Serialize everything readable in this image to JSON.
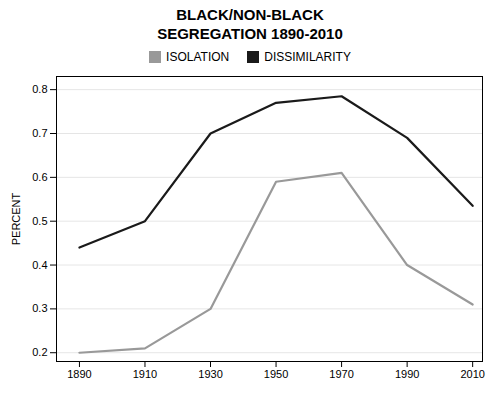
{
  "chart_data": {
    "type": "line",
    "title": "BLACK/NON-BLACK\nSEGREGATION 1890-2010",
    "y_label": "PERCENT",
    "x": [
      1890,
      1910,
      1930,
      1950,
      1970,
      1990,
      2010
    ],
    "series": [
      {
        "name": "ISOLATION",
        "color": "#999999",
        "values": [
          0.2,
          0.21,
          0.3,
          0.59,
          0.61,
          0.4,
          0.31
        ]
      },
      {
        "name": "DISSIMILARITY",
        "color": "#1a1a1a",
        "values": [
          0.44,
          0.5,
          0.7,
          0.77,
          0.785,
          0.69,
          0.535
        ]
      }
    ],
    "xlim": [
      1883,
      2013
    ],
    "xticks": [
      1890,
      1910,
      1930,
      1950,
      1970,
      1990,
      2010
    ],
    "ylim": [
      0.18,
      0.83
    ],
    "yticks": [
      0.2,
      0.3,
      0.4,
      0.5,
      0.6,
      0.7,
      0.8
    ],
    "grid": "y",
    "legend": "top"
  }
}
